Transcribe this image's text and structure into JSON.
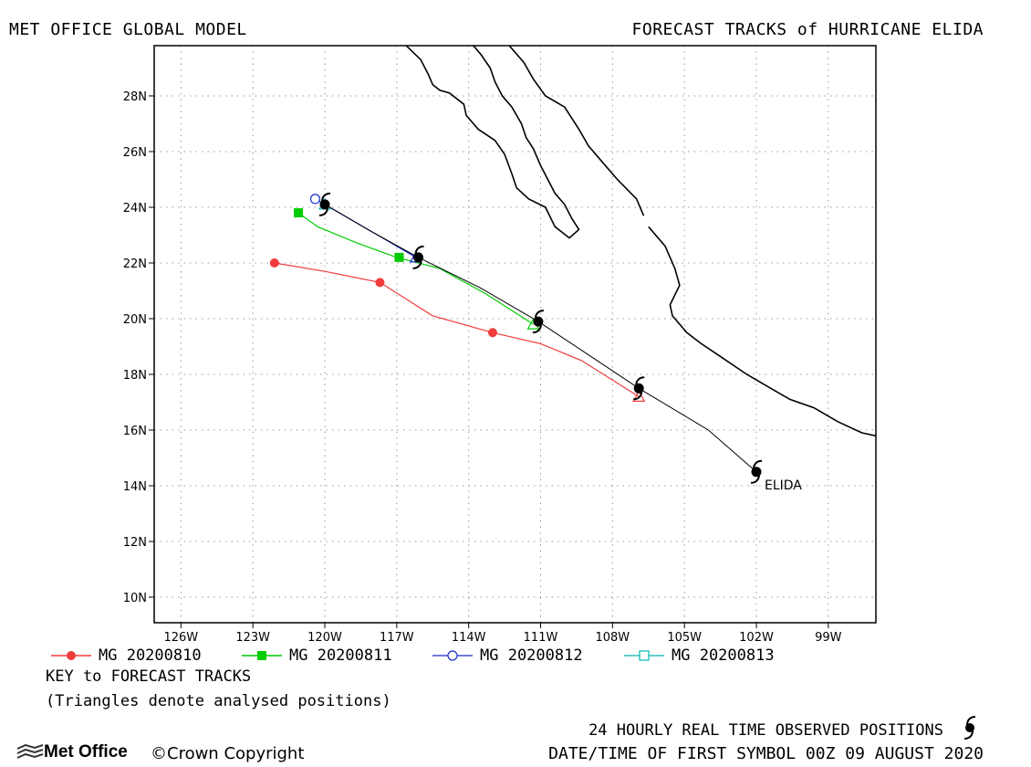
{
  "header": {
    "left": "MET OFFICE GLOBAL MODEL",
    "right": "FORECAST TRACKS of HURRICANE ELIDA"
  },
  "map": {
    "lon_range": [
      -127,
      -96
    ],
    "lat_range": [
      9,
      29.8
    ],
    "x_ticks": [
      {
        "lon": -126,
        "label": "126W"
      },
      {
        "lon": -123,
        "label": "123W"
      },
      {
        "lon": -120,
        "label": "120W"
      },
      {
        "lon": -117,
        "label": "117W"
      },
      {
        "lon": -114,
        "label": "114W"
      },
      {
        "lon": -111,
        "label": "111W"
      },
      {
        "lon": -108,
        "label": "108W"
      },
      {
        "lon": -105,
        "label": "105W"
      },
      {
        "lon": -102,
        "label": "102W"
      },
      {
        "lon": -99,
        "label": "99W"
      }
    ],
    "y_ticks": [
      {
        "lat": 10,
        "label": "10N"
      },
      {
        "lat": 12,
        "label": "12N"
      },
      {
        "lat": 14,
        "label": "14N"
      },
      {
        "lat": 16,
        "label": "16N"
      },
      {
        "lat": 18,
        "label": "18N"
      },
      {
        "lat": 20,
        "label": "20N"
      },
      {
        "lat": 22,
        "label": "22N"
      },
      {
        "lat": 24,
        "label": "24N"
      },
      {
        "lat": 26,
        "label": "26N"
      },
      {
        "lat": 28,
        "label": "28N"
      }
    ],
    "grid": "dotted",
    "storm_label": "ELIDA",
    "coastlines": [
      [
        [
          -116.6,
          29.8
        ],
        [
          -116,
          29.3
        ],
        [
          -115.7,
          28.8
        ],
        [
          -115.5,
          28.4
        ],
        [
          -115.2,
          28.2
        ],
        [
          -114.8,
          28.1
        ],
        [
          -114.2,
          27.7
        ],
        [
          -114.1,
          27.3
        ],
        [
          -113.6,
          26.8
        ],
        [
          -112.9,
          26.4
        ],
        [
          -112.5,
          25.9
        ],
        [
          -112.2,
          25.2
        ],
        [
          -112,
          24.7
        ],
        [
          -111.5,
          24.3
        ],
        [
          -110.8,
          24.0
        ],
        [
          -110.4,
          23.3
        ],
        [
          -109.8,
          22.9
        ],
        [
          -109.4,
          23.2
        ],
        [
          -109.7,
          23.6
        ],
        [
          -110,
          24.1
        ],
        [
          -110.4,
          24.5
        ],
        [
          -110.7,
          25
        ],
        [
          -111.0,
          25.5
        ],
        [
          -111.3,
          26.1
        ],
        [
          -111.6,
          26.5
        ],
        [
          -111.8,
          27
        ],
        [
          -112.2,
          27.6
        ],
        [
          -112.6,
          28
        ],
        [
          -112.9,
          28.5
        ],
        [
          -113.1,
          29
        ],
        [
          -113.5,
          29.5
        ],
        [
          -113.8,
          29.8
        ]
      ],
      [
        [
          -112.3,
          29.8
        ],
        [
          -111.7,
          29.2
        ],
        [
          -111.3,
          28.6
        ],
        [
          -110.8,
          28
        ],
        [
          -110,
          27.6
        ],
        [
          -109.4,
          26.8
        ],
        [
          -109,
          26.2
        ],
        [
          -108.4,
          25.6
        ],
        [
          -107.8,
          25
        ],
        [
          -107,
          24.3
        ],
        [
          -106.7,
          23.7
        ]
      ],
      [
        [
          -106.5,
          23.3
        ],
        [
          -105.8,
          22.6
        ],
        [
          -105.4,
          21.8
        ],
        [
          -105.2,
          21.2
        ],
        [
          -105.6,
          20.5
        ],
        [
          -105.5,
          20.1
        ],
        [
          -104.9,
          19.5
        ],
        [
          -104.3,
          19.1
        ],
        [
          -103.6,
          18.7
        ],
        [
          -102.4,
          18
        ],
        [
          -101.4,
          17.5
        ],
        [
          -100.6,
          17.1
        ],
        [
          -99.6,
          16.8
        ],
        [
          -98.6,
          16.3
        ],
        [
          -97.6,
          15.9
        ],
        [
          -96.5,
          15.7
        ],
        [
          -96,
          15.7
        ]
      ],
      [
        [
          -96,
          21
        ],
        [
          -96.4,
          21.7
        ],
        [
          -96.6,
          22.6
        ],
        [
          -96.5,
          23.4
        ],
        [
          -96.9,
          24.2
        ],
        [
          -96.6,
          24.9
        ],
        [
          -96.7,
          25.6
        ],
        [
          -96.5,
          26.2
        ],
        [
          -96.5,
          26.9
        ],
        [
          -96.3,
          27.5
        ],
        [
          -96,
          27.8
        ]
      ]
    ]
  },
  "observed": {
    "label": "ELIDA",
    "positions": [
      {
        "lon": -102,
        "lat": 14.5
      },
      {
        "lon": -106.9,
        "lat": 17.5
      },
      {
        "lon": -111.1,
        "lat": 19.9
      },
      {
        "lon": -116.1,
        "lat": 22.2
      },
      {
        "lon": -120,
        "lat": 24.1
      }
    ],
    "line": [
      [
        -102,
        14.5
      ],
      [
        -104,
        16
      ],
      [
        -106.9,
        17.5
      ],
      [
        -109,
        18.7
      ],
      [
        -111.1,
        19.9
      ],
      [
        -113.5,
        21.1
      ],
      [
        -116.1,
        22.2
      ],
      [
        -118,
        23.1
      ],
      [
        -120,
        24.1
      ]
    ]
  },
  "tracks": [
    {
      "name": "MG 20200810",
      "color": "#f03c3c",
      "marker": "circle-filled",
      "line": [
        [
          -106.9,
          17.2
        ],
        [
          -109.3,
          18.5
        ],
        [
          -111,
          19.1
        ],
        [
          -113,
          19.5
        ],
        [
          -115.5,
          20.1
        ],
        [
          -117.7,
          21.3
        ],
        [
          -120,
          21.7
        ],
        [
          -122.1,
          22.0
        ]
      ],
      "markers": [
        [
          -113,
          19.5
        ],
        [
          -117.7,
          21.3
        ],
        [
          -122.1,
          22.0
        ]
      ],
      "start": [
        -106.9,
        17.2
      ]
    },
    {
      "name": "MG 20200811",
      "color": "#00cc00",
      "marker": "square-filled",
      "line": [
        [
          -111.3,
          19.8
        ],
        [
          -113.3,
          20.9
        ],
        [
          -115.2,
          21.8
        ],
        [
          -117,
          22.2
        ],
        [
          -118.6,
          22.7
        ],
        [
          -120.3,
          23.3
        ],
        [
          -121.1,
          23.8
        ]
      ],
      "markers": [
        [
          -116.9,
          22.2
        ],
        [
          -121.1,
          23.8
        ]
      ],
      "start": [
        -111.3,
        19.8
      ]
    },
    {
      "name": "MG 20200812",
      "color": "#1a2ccc",
      "marker": "circle-open",
      "line": [
        [
          -116.2,
          22.2
        ],
        [
          -118,
          23.1
        ],
        [
          -120.4,
          24.3
        ]
      ],
      "markers": [
        [
          -120.4,
          24.3
        ]
      ],
      "start": [
        -116.2,
        22.2
      ]
    },
    {
      "name": "MG 20200813",
      "color": "#00b3b3",
      "marker": "square-open",
      "line": [
        [
          -120,
          24.1
        ],
        [
          -120.1,
          24.2
        ]
      ],
      "markers": [],
      "start": [
        -120,
        24.1
      ]
    }
  ],
  "legend": {
    "key_title": "KEY to FORECAST TRACKS",
    "note": "(Triangles denote analysed positions)"
  },
  "footer": {
    "observed_positions": "24 HOURLY REAL TIME OBSERVED POSITIONS",
    "first_symbol": "DATE/TIME OF FIRST SYMBOL 00Z 09 AUGUST 2020",
    "logo": "Met Office",
    "copyright": "©Crown Copyright"
  }
}
